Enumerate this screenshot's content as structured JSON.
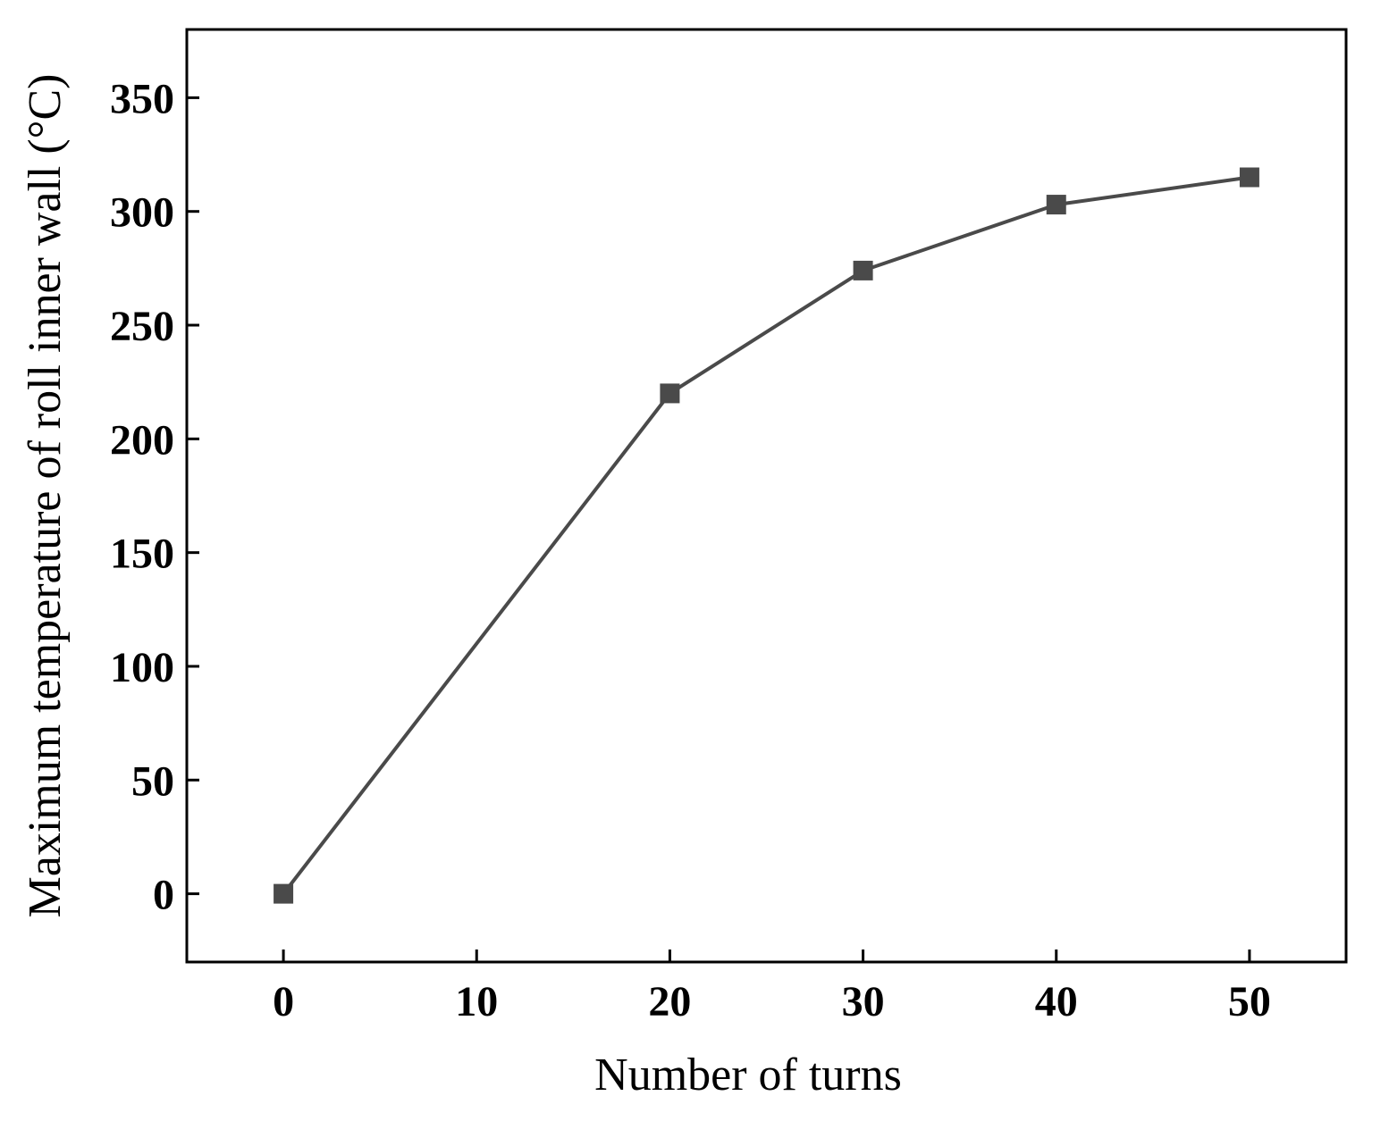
{
  "chart_data": {
    "type": "line",
    "title": "",
    "xlabel": "Number of turns",
    "ylabel": "Maximum temperature of roll inner wall (°C)",
    "xlim": [
      -5,
      55
    ],
    "ylim": [
      -30,
      380
    ],
    "xticks": [
      0,
      10,
      20,
      30,
      40,
      50
    ],
    "yticks": [
      0,
      50,
      100,
      150,
      200,
      250,
      300,
      350
    ],
    "xtick_labels": [
      "0",
      "10",
      "20",
      "30",
      "40",
      "50"
    ],
    "ytick_labels": [
      "0",
      "50",
      "100",
      "150",
      "200",
      "250",
      "300",
      "350"
    ],
    "grid": false,
    "legend": "none",
    "series": [
      {
        "marker": "square",
        "color": "#4a4a4a",
        "x": [
          0,
          20,
          30,
          40,
          50
        ],
        "y": [
          0,
          220,
          274,
          303,
          315
        ]
      }
    ]
  }
}
